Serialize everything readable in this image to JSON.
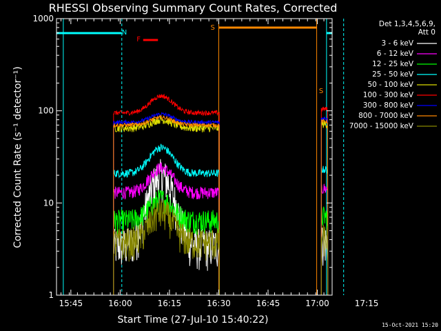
{
  "chart_data": {
    "type": "line",
    "title": "RHESSI Observing Summary Count Rates, Corrected",
    "xlabel": "Start Time (27-Jul-10 15:40:22)",
    "ylabel": "Corrected Count Rate (s⁻¹ detector⁻¹)",
    "y_scale": "log",
    "ylim": [
      1,
      1000
    ],
    "xlim_minutes": [
      15.63,
      99.5
    ],
    "x_ticks": [
      {
        "t": 20,
        "label": "15:45"
      },
      {
        "t": 35,
        "label": "16:00"
      },
      {
        "t": 50,
        "label": "16:15"
      },
      {
        "t": 65,
        "label": "16:30"
      },
      {
        "t": 80,
        "label": "16:45"
      },
      {
        "t": 95,
        "label": "17:00"
      },
      {
        "t": 110,
        "label": "17:15"
      }
    ],
    "y_ticks": [
      {
        "v": 1,
        "label": "1"
      },
      {
        "v": 10,
        "label": "10"
      },
      {
        "v": 100,
        "label": "100"
      },
      {
        "v": 1000,
        "label": "1000"
      }
    ],
    "legend_header": [
      "Det 1,3,4,5,6,9,",
      "Att 0"
    ],
    "legend_placement": "right",
    "series": [
      {
        "name": "3 - 6 keV",
        "color": "#ffffff",
        "base": 3.5,
        "peak": 20,
        "noise": 0.25
      },
      {
        "name": "6 - 12 keV",
        "color": "#ff00ff",
        "base": 13,
        "peak": 24,
        "noise": 0.08
      },
      {
        "name": "12 - 25 keV",
        "color": "#00ff00",
        "base": 6.5,
        "peak": 11,
        "noise": 0.15
      },
      {
        "name": "25 - 50 keV",
        "color": "#00ffff",
        "base": 21,
        "peak": 40,
        "noise": 0.05
      },
      {
        "name": "50 - 100 keV",
        "color": "#dddd00",
        "base": 65,
        "peak": 80,
        "noise": 0.05
      },
      {
        "name": "100 - 300 keV",
        "color": "#ff0000",
        "base": 95,
        "peak": 145,
        "noise": 0.03
      },
      {
        "name": "300 - 800 keV",
        "color": "#0000ff",
        "base": 75,
        "peak": 92,
        "noise": 0.025
      },
      {
        "name": "800 - 7000 keV",
        "color": "#ff8800",
        "base": 70,
        "peak": 85,
        "noise": 0.025
      },
      {
        "name": "7000 - 15000 keV",
        "color": "#888800",
        "base": 3.8,
        "peak": 8,
        "noise": 0.2
      }
    ],
    "flags": [
      {
        "label": "N",
        "color": "#00ffff",
        "t": 35.5
      },
      {
        "label": "F",
        "color": "#ff0000",
        "t": 40
      },
      {
        "label": "S",
        "color": "#ff8800",
        "t": 62.5
      },
      {
        "label": "S",
        "color": "#ff8800",
        "t": 95.5
      }
    ],
    "intervals": {
      "night": [
        {
          "start": 17.7,
          "end": 35.5
        },
        {
          "start": 97.8,
          "end": 103
        }
      ],
      "flare": [
        {
          "start": 42,
          "end": 46.5
        }
      ],
      "saa": [
        {
          "start": 65,
          "end": 94.8
        }
      ]
    },
    "data_segments": [
      {
        "start": 33,
        "end": 65.2
      },
      {
        "start": 96.2,
        "end": 98.2
      }
    ]
  },
  "footer": {
    "timestamp": "15-Oct-2021 15:20"
  }
}
